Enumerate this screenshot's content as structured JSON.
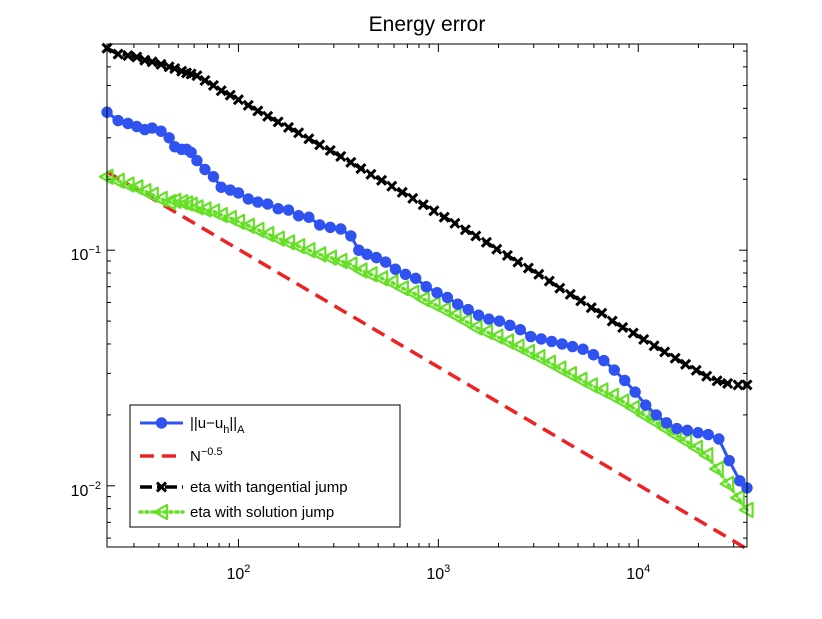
{
  "chart_data": {
    "type": "line",
    "title": "Energy error",
    "xscale": "log",
    "yscale": "log",
    "xlim": [
      22,
      35000
    ],
    "ylim": [
      0.0055,
      0.75
    ],
    "xticks": [
      {
        "value": 100,
        "base": "10",
        "exp": "2"
      },
      {
        "value": 1000,
        "base": "10",
        "exp": "3"
      },
      {
        "value": 10000,
        "base": "10",
        "exp": "4"
      }
    ],
    "yticks": [
      {
        "value": 0.01,
        "base": "10",
        "exp": "−2"
      },
      {
        "value": 0.1,
        "base": "10",
        "exp": "−1"
      }
    ],
    "legend_position": "bottom-left",
    "series": [
      {
        "name": "||u−u_h||_A",
        "legend": {
          "parts": [
            {
              "t": "||u−u"
            },
            {
              "t": "h",
              "shift": "sub"
            },
            {
              "t": "||"
            },
            {
              "t": "A",
              "shift": "sub"
            }
          ]
        },
        "color": "#2f52f0",
        "style": "solid",
        "marker": "circle",
        "x": [
          22,
          25,
          28,
          31,
          34,
          37,
          41,
          45,
          48,
          52,
          55,
          58,
          62,
          68,
          75,
          82,
          91,
          100,
          112,
          125,
          140,
          158,
          178,
          200,
          225,
          255,
          288,
          325,
          365,
          400,
          440,
          490,
          545,
          610,
          685,
          770,
          870,
          985,
          1110,
          1250,
          1410,
          1590,
          1790,
          2020,
          2280,
          2570,
          2900,
          3270,
          3690,
          4160,
          4690,
          5290,
          5970,
          6730,
          7590,
          8560,
          9650,
          10900,
          12300,
          13850,
          15600,
          17600,
          19900,
          22400,
          25300,
          28500,
          32200,
          35000
        ],
        "y": [
          0.385,
          0.355,
          0.345,
          0.335,
          0.325,
          0.33,
          0.32,
          0.3,
          0.275,
          0.268,
          0.268,
          0.26,
          0.24,
          0.22,
          0.205,
          0.185,
          0.18,
          0.175,
          0.165,
          0.16,
          0.157,
          0.15,
          0.148,
          0.14,
          0.138,
          0.128,
          0.125,
          0.123,
          0.115,
          0.1,
          0.096,
          0.093,
          0.089,
          0.083,
          0.079,
          0.076,
          0.07,
          0.066,
          0.063,
          0.059,
          0.056,
          0.053,
          0.051,
          0.05,
          0.048,
          0.046,
          0.043,
          0.042,
          0.041,
          0.04,
          0.039,
          0.038,
          0.036,
          0.034,
          0.031,
          0.028,
          0.025,
          0.022,
          0.02,
          0.0185,
          0.0175,
          0.0172,
          0.0168,
          0.0165,
          0.0158,
          0.0128,
          0.0105,
          0.0098
        ]
      },
      {
        "name": "N^−0.5",
        "legend": {
          "parts": [
            {
              "t": "N"
            },
            {
              "t": "−0.5",
              "shift": "super"
            }
          ]
        },
        "color": "#ee2222",
        "style": "dashed",
        "marker": "none",
        "x": [
          22,
          35000
        ],
        "y": [
          0.215,
          0.0054
        ]
      },
      {
        "name": "eta with tangential jump",
        "legend": {
          "parts": [
            {
              "t": "eta with tangential jump"
            }
          ]
        },
        "color": "#000000",
        "style": "dashdot",
        "marker": "x",
        "x": [
          22,
          25,
          28,
          31,
          34,
          37,
          41,
          45,
          48,
          52,
          55,
          58,
          62,
          68,
          75,
          82,
          91,
          100,
          112,
          125,
          140,
          158,
          178,
          200,
          225,
          255,
          288,
          325,
          365,
          410,
          460,
          520,
          585,
          660,
          745,
          840,
          950,
          1070,
          1210,
          1365,
          1540,
          1740,
          1960,
          2215,
          2500,
          2820,
          3180,
          3590,
          4050,
          4570,
          5160,
          5820,
          6570,
          7410,
          8360,
          9440,
          10650,
          12000,
          13550,
          15300,
          17250,
          19500,
          22000,
          24800,
          28000,
          31600,
          35000
        ],
        "y": [
          0.72,
          0.68,
          0.67,
          0.66,
          0.64,
          0.63,
          0.615,
          0.6,
          0.59,
          0.575,
          0.565,
          0.56,
          0.55,
          0.525,
          0.5,
          0.475,
          0.455,
          0.435,
          0.412,
          0.39,
          0.37,
          0.35,
          0.332,
          0.315,
          0.297,
          0.28,
          0.265,
          0.25,
          0.236,
          0.222,
          0.21,
          0.198,
          0.187,
          0.176,
          0.166,
          0.156,
          0.147,
          0.138,
          0.13,
          0.122,
          0.115,
          0.108,
          0.101,
          0.095,
          0.089,
          0.084,
          0.079,
          0.074,
          0.069,
          0.065,
          0.061,
          0.057,
          0.054,
          0.05,
          0.047,
          0.0445,
          0.0418,
          0.0393,
          0.037,
          0.0348,
          0.0328,
          0.0309,
          0.0292,
          0.0279,
          0.0272,
          0.0268,
          0.0268
        ]
      },
      {
        "name": "eta with solution jump",
        "legend": {
          "parts": [
            {
              "t": "eta with solution jump"
            }
          ]
        },
        "color": "#66e026",
        "style": "dotted",
        "marker": "triangle-left",
        "x": [
          22,
          25,
          28,
          31,
          34,
          37,
          41,
          45,
          48,
          52,
          55,
          58,
          62,
          68,
          75,
          82,
          91,
          100,
          112,
          125,
          140,
          158,
          178,
          200,
          225,
          255,
          288,
          325,
          365,
          410,
          460,
          520,
          585,
          660,
          745,
          840,
          950,
          1070,
          1210,
          1365,
          1540,
          1740,
          1960,
          2215,
          2500,
          2820,
          3180,
          3590,
          4050,
          4570,
          5160,
          5820,
          6570,
          7410,
          8360,
          9440,
          10650,
          12000,
          13550,
          15300,
          17250,
          19500,
          22000,
          24800,
          28000,
          31600,
          35000
        ],
        "y": [
          0.205,
          0.197,
          0.19,
          0.185,
          0.178,
          0.172,
          0.165,
          0.16,
          0.162,
          0.16,
          0.158,
          0.156,
          0.152,
          0.149,
          0.146,
          0.141,
          0.137,
          0.132,
          0.127,
          0.122,
          0.117,
          0.112,
          0.108,
          0.104,
          0.1,
          0.096,
          0.093,
          0.09,
          0.087,
          0.082,
          0.079,
          0.076,
          0.073,
          0.069,
          0.066,
          0.062,
          0.059,
          0.056,
          0.053,
          0.05,
          0.047,
          0.045,
          0.043,
          0.041,
          0.039,
          0.037,
          0.0352,
          0.0333,
          0.0315,
          0.0298,
          0.0282,
          0.0267,
          0.0254,
          0.0241,
          0.0228,
          0.0214,
          0.02,
          0.0188,
          0.0176,
          0.0165,
          0.0155,
          0.0145,
          0.0135,
          0.0118,
          0.0102,
          0.0089,
          0.0079
        ]
      }
    ]
  }
}
